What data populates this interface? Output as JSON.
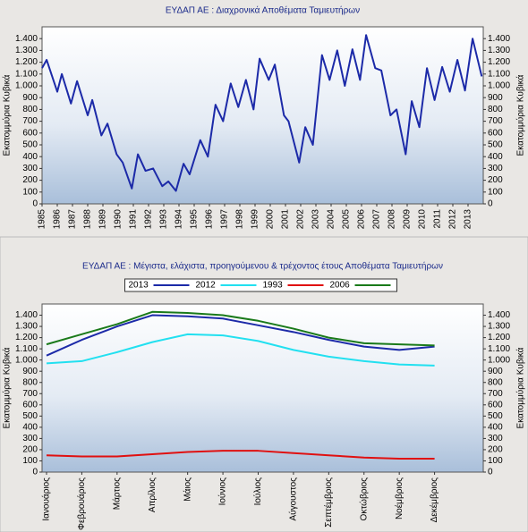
{
  "charts": [
    {
      "type": "line",
      "title": "ΕΥΔΑΠ ΑΕ : Διαχρονικά Αποθέματα Ταμιευτήρων",
      "y_label": "Εκατομμύρια Κυβικά",
      "x": [
        1985.0,
        1985.3,
        1986.0,
        1986.3,
        1986.9,
        1987.3,
        1988.0,
        1988.3,
        1988.9,
        1989.3,
        1989.9,
        1990.3,
        1990.9,
        1991.3,
        1991.8,
        1992.3,
        1992.9,
        1993.3,
        1993.8,
        1994.3,
        1994.7,
        1995.4,
        1995.9,
        1996.4,
        1996.9,
        1997.4,
        1997.9,
        1998.4,
        1998.9,
        1999.3,
        1999.9,
        2000.3,
        2000.9,
        2001.2,
        2001.9,
        2002.3,
        2002.8,
        2003.4,
        2003.9,
        2004.4,
        2004.9,
        2005.4,
        2005.9,
        2006.3,
        2006.9,
        2007.3,
        2007.9,
        2008.3,
        2008.9,
        2009.3,
        2009.8,
        2010.3,
        2010.8,
        2011.3,
        2011.8,
        2012.3,
        2012.8,
        2013.3,
        2013.9
      ],
      "series": [
        {
          "name": "Αποθέματα",
          "color": "#1c2aa8",
          "values": [
            1150,
            1220,
            950,
            1100,
            850,
            1040,
            750,
            880,
            580,
            680,
            420,
            350,
            130,
            420,
            280,
            300,
            150,
            190,
            110,
            340,
            250,
            540,
            400,
            840,
            700,
            1020,
            820,
            1050,
            800,
            1230,
            1050,
            1180,
            750,
            700,
            350,
            650,
            500,
            1260,
            1050,
            1300,
            1000,
            1310,
            1050,
            1430,
            1150,
            1130,
            750,
            800,
            420,
            870,
            650,
            1150,
            880,
            1160,
            950,
            1220,
            960,
            1400,
            1080
          ]
        }
      ],
      "xlim": [
        1985,
        2014
      ],
      "xticks": [
        1985,
        1986,
        1987,
        1988,
        1989,
        1990,
        1991,
        1992,
        1993,
        1994,
        1995,
        1996,
        1997,
        1998,
        1999,
        2000,
        2001,
        2002,
        2003,
        2004,
        2005,
        2006,
        2007,
        2008,
        2009,
        2010,
        2011,
        2012,
        2013
      ],
      "ylim": [
        0,
        1500
      ],
      "yticks": [
        0,
        100,
        200,
        300,
        400,
        500,
        600,
        700,
        800,
        900,
        {
          "value": 1000,
          "label": "1.000"
        },
        {
          "value": 1100,
          "label": "1.100"
        },
        {
          "value": 1200,
          "label": "1.200"
        },
        {
          "value": 1300,
          "label": "1.300"
        },
        {
          "value": 1400,
          "label": "1.400"
        }
      ]
    },
    {
      "type": "line",
      "title": "ΕΥΔΑΠ ΑΕ : Μέγιστα, ελάχιστα, προηγούμενου & τρέχοντος έτους Αποθέματα Ταμιευτήρων",
      "y_label": "Εκατομμύρια Κυβικά",
      "categories": [
        "Ιανουάριος",
        "Φεβρουάριος",
        "Μάρτιος",
        "Απρίλιος",
        "Μάιος",
        "Ιούνιος",
        "Ιούλιος",
        "Αύγουστος",
        "Σεπτέμβριος",
        "Οκτώβριος",
        "Νοέμβριος",
        "Δεκέμβριος"
      ],
      "series": [
        {
          "name": "2013",
          "color": "#1c2aa8",
          "values": [
            1040,
            1180,
            1300,
            1400,
            1390,
            1370,
            1310,
            1250,
            1180,
            1120,
            1090,
            1120
          ]
        },
        {
          "name": "2012",
          "color": "#22e0f0",
          "values": [
            970,
            990,
            1070,
            1160,
            1230,
            1220,
            1170,
            1090,
            1030,
            990,
            960,
            950
          ]
        },
        {
          "name": "1993",
          "color": "#e01010",
          "values": [
            150,
            140,
            140,
            160,
            180,
            190,
            190,
            170,
            150,
            130,
            120,
            120
          ]
        },
        {
          "name": "2006",
          "color": "#1a7a1a",
          "values": [
            1140,
            1230,
            1320,
            1430,
            1420,
            1400,
            1350,
            1280,
            1200,
            1150,
            1140,
            1130
          ]
        }
      ],
      "ylim": [
        0,
        1500
      ],
      "yticks": [
        0,
        100,
        200,
        300,
        400,
        500,
        600,
        700,
        800,
        900,
        {
          "value": 1000,
          "label": "1.000"
        },
        {
          "value": 1100,
          "label": "1.100"
        },
        {
          "value": 1200,
          "label": "1.200"
        },
        {
          "value": 1300,
          "label": "1.300"
        },
        {
          "value": 1400,
          "label": "1.400"
        }
      ]
    }
  ]
}
